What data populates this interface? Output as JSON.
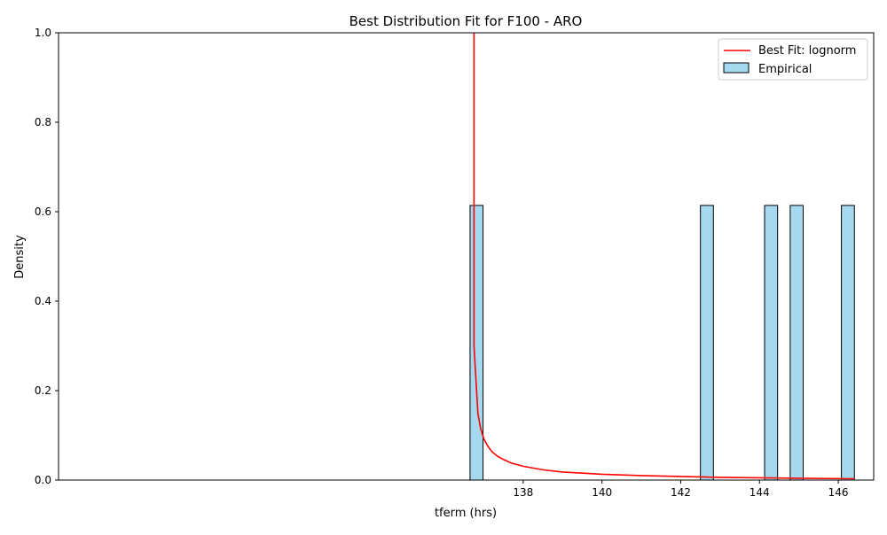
{
  "chart_data": {
    "type": "bar",
    "title": "Best Distribution Fit for F100 - ARO",
    "xlabel": "tferm (hrs)",
    "ylabel": "Density",
    "xlim": [
      126.2,
      146.9
    ],
    "ylim": [
      0,
      1.0
    ],
    "xticks": [
      138,
      140,
      142,
      144,
      146
    ],
    "yticks": [
      0.0,
      0.2,
      0.4,
      0.6,
      0.8,
      1.0
    ],
    "grid": false,
    "legend_position": "top-right",
    "legend": [
      {
        "label": "Best Fit: lognorm",
        "kind": "line",
        "color": "#ff0000"
      },
      {
        "label": "Empirical",
        "kind": "patch",
        "color": "#a6d9ef"
      }
    ],
    "histogram": {
      "name": "Empirical",
      "bar_color": "#a6d9ef",
      "edge_color": "#000000",
      "bins": [
        {
          "start": 136.65,
          "end": 136.98,
          "density": 0.614
        },
        {
          "start": 142.5,
          "end": 142.83,
          "density": 0.614
        },
        {
          "start": 144.13,
          "end": 144.46,
          "density": 0.614
        },
        {
          "start": 144.78,
          "end": 145.11,
          "density": 0.614
        },
        {
          "start": 146.08,
          "end": 146.41,
          "density": 0.614
        }
      ]
    },
    "fit_line": {
      "name": "Best Fit: lognorm",
      "color": "#ff0000",
      "x": [
        136.75,
        136.75,
        136.85,
        136.92,
        137.0,
        137.1,
        137.2,
        137.35,
        137.5,
        137.7,
        138.0,
        138.5,
        139.0,
        140.0,
        141.0,
        142.0,
        143.0,
        144.0,
        145.0,
        146.41
      ],
      "y": [
        1.0,
        0.3,
        0.148,
        0.115,
        0.092,
        0.076,
        0.064,
        0.053,
        0.046,
        0.038,
        0.031,
        0.023,
        0.018,
        0.013,
        0.01,
        0.008,
        0.006,
        0.005,
        0.004,
        0.003
      ]
    }
  }
}
